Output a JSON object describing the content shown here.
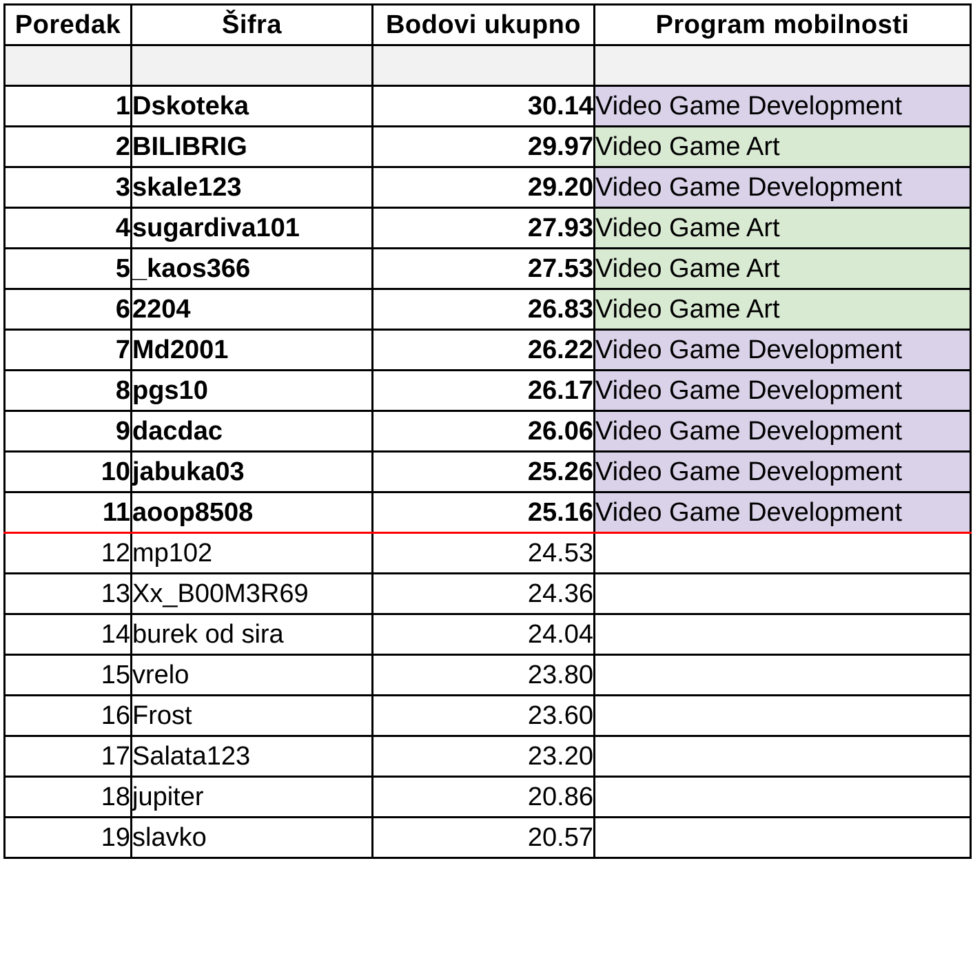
{
  "headers": {
    "rank": "Poredak",
    "code": "Šifra",
    "points": "Bodovi ukupno",
    "program": "Program mobilnosti"
  },
  "colors": {
    "video_game_development": "#d9d2e9",
    "video_game_art": "#d9ead3",
    "spacer_row": "#f2f2f2",
    "cutoff_line": "#ff0000"
  },
  "rows": [
    {
      "rank": "1",
      "code": "Dskoteka",
      "points": "30.14",
      "program": "Video Game Development",
      "program_color": "#d9d2e9"
    },
    {
      "rank": "2",
      "code": "BILIBRIG",
      "points": "29.97",
      "program": "Video Game Art",
      "program_color": "#d9ead3"
    },
    {
      "rank": "3",
      "code": "skale123",
      "points": "29.20",
      "program": "Video Game Development",
      "program_color": "#d9d2e9"
    },
    {
      "rank": "4",
      "code": "sugardiva101",
      "points": "27.93",
      "program": "Video Game Art",
      "program_color": "#d9ead3"
    },
    {
      "rank": "5",
      "code": "_kaos366",
      "points": "27.53",
      "program": "Video Game Art",
      "program_color": "#d9ead3"
    },
    {
      "rank": "6",
      "code": "2204",
      "points": "26.83",
      "program": "Video Game Art",
      "program_color": "#d9ead3"
    },
    {
      "rank": "7",
      "code": "Md2001",
      "points": "26.22",
      "program": "Video Game Development",
      "program_color": "#d9d2e9"
    },
    {
      "rank": "8",
      "code": "pgs10",
      "points": "26.17",
      "program": "Video Game Development",
      "program_color": "#d9d2e9"
    },
    {
      "rank": "9",
      "code": "dacdac",
      "points": "26.06",
      "program": "Video Game Development",
      "program_color": "#d9d2e9"
    },
    {
      "rank": "10",
      "code": "jabuka03",
      "points": "25.26",
      "program": "Video Game Development",
      "program_color": "#d9d2e9"
    },
    {
      "rank": "11",
      "code": "aoop8508",
      "points": "25.16",
      "program": "Video Game Development",
      "program_color": "#d9d2e9"
    },
    {
      "rank": "12",
      "code": "mp102",
      "points": "24.53",
      "program": ""
    },
    {
      "rank": "13",
      "code": "Xx_B00M3R69",
      "points": "24.36",
      "program": ""
    },
    {
      "rank": "14",
      "code": "burek od sira",
      "points": "24.04",
      "program": ""
    },
    {
      "rank": "15",
      "code": "vrelo",
      "points": "23.80",
      "program": ""
    },
    {
      "rank": "16",
      "code": "Frost",
      "points": "23.60",
      "program": ""
    },
    {
      "rank": "17",
      "code": "Salata123",
      "points": "23.20",
      "program": ""
    },
    {
      "rank": "18",
      "code": "jupiter",
      "points": "20.86",
      "program": ""
    },
    {
      "rank": "19",
      "code": "slavko",
      "points": "20.57",
      "program": ""
    }
  ]
}
